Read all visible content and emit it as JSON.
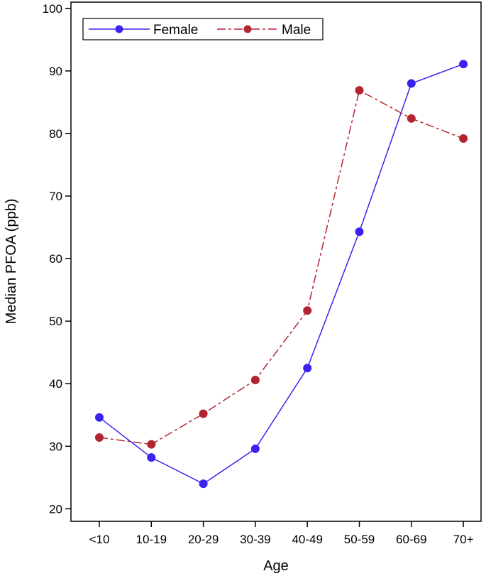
{
  "chart_data": {
    "type": "line",
    "xlabel": "Age",
    "ylabel": "Median PFOA (ppb)",
    "categories": [
      "<10",
      "10-19",
      "20-29",
      "30-39",
      "40-49",
      "50-59",
      "60-69",
      "70+"
    ],
    "ylim": [
      18,
      101
    ],
    "yticks": [
      20,
      30,
      40,
      50,
      60,
      70,
      80,
      90,
      100
    ],
    "grid": false,
    "legend_position": "top-left",
    "series": [
      {
        "name": "Female",
        "values": [
          34.6,
          28.2,
          24.0,
          29.6,
          42.5,
          64.3,
          88.0,
          91.1
        ],
        "color": "#3a22f0",
        "line_style": "solid"
      },
      {
        "name": "Male",
        "values": [
          31.4,
          30.3,
          35.2,
          40.6,
          51.7,
          86.9,
          82.4,
          79.2
        ],
        "color": "#b22530",
        "line_style": "dash-dot"
      }
    ]
  }
}
